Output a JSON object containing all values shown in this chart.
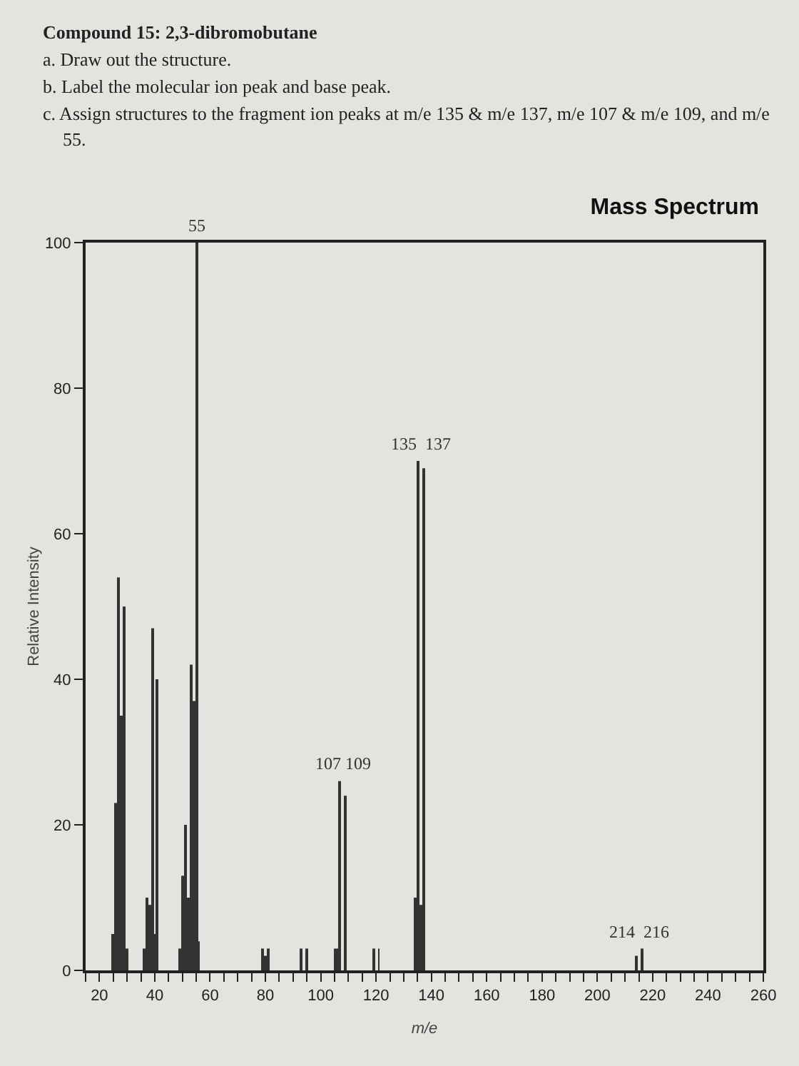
{
  "chart_data": {
    "type": "bar",
    "title": "Mass Spectrum",
    "xlabel": "m/e",
    "ylabel": "Relative Intensity",
    "annotations": [
      "Compound 15: 2,3-dibromobutane",
      "a.  Draw out the structure.",
      "b.  Label the molecular ion peak and base peak.",
      "c.  Assign structures to the fragment ion peaks at m/e 135 & m/e 137, m/e 107 & m/e 109, and m/e 55.",
      {
        "text": "55",
        "x": 55,
        "y": 100
      },
      {
        "text": "107 109",
        "x": 108,
        "y": 26
      },
      {
        "text": "135  137",
        "x": 136,
        "y": 70
      },
      {
        "text": "214  216",
        "x": 215,
        "y": 3
      }
    ],
    "x": [
      25,
      26,
      27,
      28,
      29,
      30,
      36,
      37,
      38,
      39,
      40,
      41,
      49,
      50,
      51,
      52,
      53,
      54,
      55,
      56,
      79,
      80,
      81,
      93,
      95,
      105,
      106,
      107,
      109,
      119,
      121,
      134,
      135,
      136,
      137,
      214,
      216
    ],
    "values": [
      5,
      23,
      54,
      35,
      50,
      3,
      3,
      10,
      9,
      47,
      5,
      40,
      3,
      13,
      20,
      10,
      42,
      37,
      100,
      4,
      3,
      2,
      3,
      3,
      3,
      3,
      3,
      26,
      24,
      3,
      3,
      10,
      70,
      9,
      69,
      2,
      3
    ],
    "color": "#333333",
    "xlim": [
      15,
      260
    ],
    "xticks": [
      {
        "value": 15,
        "label": null
      },
      20,
      {
        "value": 25,
        "label": null
      },
      {
        "value": 30,
        "label": null
      },
      {
        "value": 35,
        "label": null
      },
      40,
      {
        "value": 45,
        "label": null
      },
      {
        "value": 50,
        "label": null
      },
      {
        "value": 55,
        "label": null
      },
      60,
      {
        "value": 65,
        "label": null
      },
      {
        "value": 70,
        "label": null
      },
      {
        "value": 75,
        "label": null
      },
      80,
      {
        "value": 85,
        "label": null
      },
      {
        "value": 90,
        "label": null
      },
      {
        "value": 95,
        "label": null
      },
      100,
      {
        "value": 105,
        "label": null
      },
      {
        "value": 110,
        "label": null
      },
      {
        "value": 115,
        "label": null
      },
      120,
      {
        "value": 125,
        "label": null
      },
      {
        "value": 130,
        "label": null
      },
      {
        "value": 135,
        "label": null
      },
      140,
      {
        "value": 145,
        "label": null
      },
      {
        "value": 150,
        "label": null
      },
      {
        "value": 155,
        "label": null
      },
      160,
      {
        "value": 165,
        "label": null
      },
      {
        "value": 170,
        "label": null
      },
      {
        "value": 175,
        "label": null
      },
      180,
      {
        "value": 185,
        "label": null
      },
      {
        "value": 190,
        "label": null
      },
      {
        "value": 195,
        "label": null
      },
      200,
      {
        "value": 205,
        "label": null
      },
      {
        "value": 210,
        "label": null
      },
      {
        "value": 215,
        "label": null
      },
      220,
      {
        "value": 225,
        "label": null
      },
      {
        "value": 230,
        "label": null
      },
      {
        "value": 235,
        "label": null
      },
      240,
      {
        "value": 245,
        "label": null
      },
      {
        "value": 250,
        "label": null
      },
      {
        "value": 255,
        "label": null
      },
      260
    ],
    "ylim": [
      0,
      100
    ],
    "yticks": [
      0,
      20,
      40,
      60,
      80,
      100
    ],
    "grid": false
  }
}
